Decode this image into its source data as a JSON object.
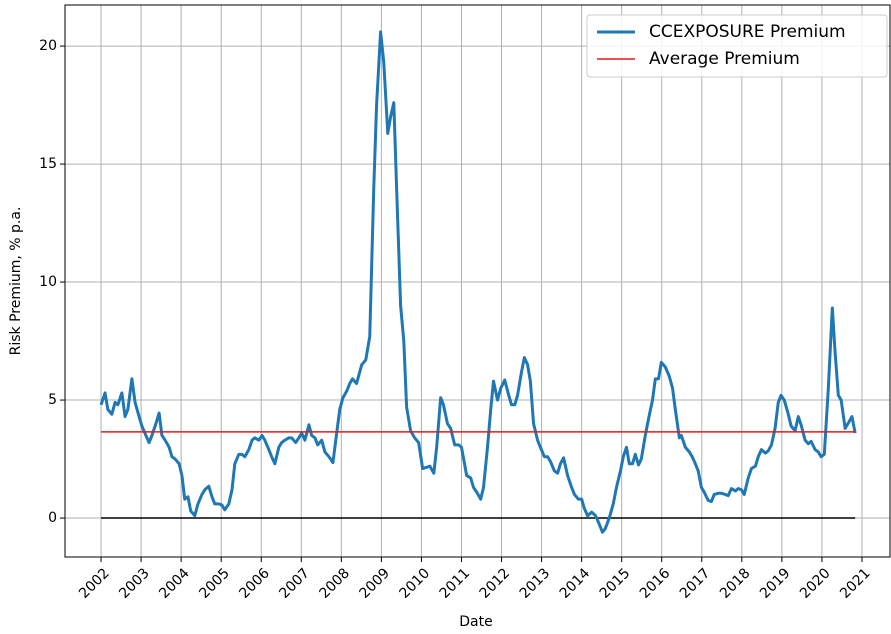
{
  "chart_data": {
    "type": "line",
    "xlabel": "Date",
    "ylabel": "Risk Premium, % p.a.",
    "xlim": [
      2001.1,
      2021.7
    ],
    "ylim": [
      -1.65,
      21.74
    ],
    "xticks": [
      2002,
      2003,
      2004,
      2005,
      2006,
      2007,
      2008,
      2009,
      2010,
      2011,
      2012,
      2013,
      2014,
      2015,
      2016,
      2017,
      2018,
      2019,
      2020,
      2021
    ],
    "yticks": [
      0,
      5,
      10,
      15,
      20
    ],
    "grid": true,
    "legend": "upper right",
    "baseline": 0,
    "baseline_color": "#000000",
    "series": [
      {
        "name": "CCEXPOSURE Premium",
        "color": "#1f77b4",
        "x": [
          2002.0,
          2002.1,
          2002.17,
          2002.27,
          2002.35,
          2002.42,
          2002.52,
          2002.6,
          2002.67,
          2002.77,
          2002.85,
          2002.95,
          2003.02,
          2003.12,
          2003.2,
          2003.27,
          2003.37,
          2003.45,
          2003.52,
          2003.6,
          2003.7,
          2003.77,
          2003.85,
          2003.95,
          2004.02,
          2004.09,
          2004.17,
          2004.24,
          2004.34,
          2004.42,
          2004.52,
          2004.59,
          2004.69,
          2004.77,
          2004.84,
          2004.94,
          2005.02,
          2005.09,
          2005.19,
          2005.27,
          2005.34,
          2005.44,
          2005.52,
          2005.59,
          2005.69,
          2005.77,
          2005.84,
          2005.94,
          2006.02,
          2006.09,
          2006.19,
          2006.26,
          2006.34,
          2006.44,
          2006.51,
          2006.59,
          2006.69,
          2006.76,
          2006.86,
          2006.94,
          2007.01,
          2007.09,
          2007.19,
          2007.26,
          2007.34,
          2007.41,
          2007.51,
          2007.59,
          2007.69,
          2007.79,
          2007.96,
          2008.04,
          2008.14,
          2008.21,
          2008.28,
          2008.38,
          2008.51,
          2008.61,
          2008.71,
          2008.81,
          2008.88,
          2008.98,
          2009.06,
          2009.16,
          2009.23,
          2009.31,
          2009.38,
          2009.48,
          2009.56,
          2009.63,
          2009.73,
          2009.83,
          2009.93,
          2010.03,
          2010.13,
          2010.21,
          2010.31,
          2010.38,
          2010.48,
          2010.55,
          2010.65,
          2010.73,
          2010.83,
          2010.93,
          2011.0,
          2011.13,
          2011.23,
          2011.3,
          2011.38,
          2011.48,
          2011.55,
          2011.65,
          2011.73,
          2011.8,
          2011.9,
          2011.98,
          2012.08,
          2012.18,
          2012.25,
          2012.33,
          2012.4,
          2012.5,
          2012.57,
          2012.65,
          2012.72,
          2012.8,
          2012.9,
          2012.97,
          2013.07,
          2013.15,
          2013.22,
          2013.32,
          2013.4,
          2013.47,
          2013.55,
          2013.65,
          2013.75,
          2013.82,
          2013.92,
          2014.0,
          2014.07,
          2014.15,
          2014.25,
          2014.35,
          2014.45,
          2014.52,
          2014.59,
          2014.69,
          2014.79,
          2014.87,
          2014.97,
          2015.04,
          2015.12,
          2015.19,
          2015.27,
          2015.34,
          2015.42,
          2015.49,
          2015.59,
          2015.67,
          2015.77,
          2015.84,
          2015.92,
          2015.99,
          2016.09,
          2016.19,
          2016.27,
          2016.34,
          2016.44,
          2016.49,
          2016.59,
          2016.69,
          2016.76,
          2016.84,
          2016.91,
          2016.99,
          2017.06,
          2017.16,
          2017.24,
          2017.31,
          2017.41,
          2017.49,
          2017.59,
          2017.66,
          2017.74,
          2017.84,
          2017.91,
          2017.99,
          2018.06,
          2018.16,
          2018.24,
          2018.34,
          2018.41,
          2018.49,
          2018.59,
          2018.66,
          2018.74,
          2018.83,
          2018.91,
          2018.98,
          2019.06,
          2019.16,
          2019.23,
          2019.33,
          2019.41,
          2019.48,
          2019.58,
          2019.66,
          2019.73,
          2019.83,
          2019.91,
          2019.98,
          2020.06,
          2020.16,
          2020.26,
          2020.33,
          2020.41,
          2020.48,
          2020.58,
          2020.65,
          2020.75,
          2020.83
        ],
        "values": [
          4.8,
          5.3,
          4.6,
          4.4,
          4.9,
          4.8,
          5.3,
          4.3,
          4.6,
          5.9,
          4.9,
          4.3,
          3.9,
          3.5,
          3.2,
          3.5,
          4.0,
          4.45,
          3.5,
          3.3,
          3.0,
          2.6,
          2.5,
          2.3,
          1.8,
          0.8,
          0.9,
          0.3,
          0.1,
          0.6,
          1.0,
          1.2,
          1.35,
          0.9,
          0.6,
          0.6,
          0.55,
          0.35,
          0.6,
          1.2,
          2.3,
          2.7,
          2.7,
          2.6,
          2.9,
          3.3,
          3.4,
          3.3,
          3.5,
          3.3,
          2.9,
          2.6,
          2.3,
          3.0,
          3.2,
          3.3,
          3.4,
          3.4,
          3.2,
          3.4,
          3.6,
          3.3,
          3.95,
          3.5,
          3.4,
          3.1,
          3.3,
          2.8,
          2.6,
          2.35,
          4.6,
          5.1,
          5.4,
          5.7,
          5.9,
          5.7,
          6.5,
          6.7,
          7.7,
          14,
          17.5,
          20.6,
          19.3,
          16.3,
          17,
          17.6,
          14,
          9,
          7.5,
          4.7,
          3.7,
          3.4,
          3.2,
          2.1,
          2.15,
          2.2,
          1.9,
          3.0,
          5.1,
          4.8,
          4.0,
          3.8,
          3.1,
          3.1,
          3.0,
          1.8,
          1.7,
          1.3,
          1.1,
          0.8,
          1.3,
          3.0,
          4.6,
          5.8,
          5.0,
          5.5,
          5.85,
          5.2,
          4.8,
          4.8,
          5.2,
          6.2,
          6.8,
          6.5,
          5.8,
          4.0,
          3.3,
          3.0,
          2.6,
          2.6,
          2.4,
          2.0,
          1.9,
          2.3,
          2.55,
          1.8,
          1.3,
          1.0,
          0.8,
          0.8,
          0.4,
          0.1,
          0.25,
          0.1,
          -0.3,
          -0.6,
          -0.45,
          0,
          0.6,
          1.3,
          2.0,
          2.6,
          3.0,
          2.3,
          2.3,
          2.7,
          2.25,
          2.5,
          3.5,
          4.2,
          5.0,
          5.9,
          5.9,
          6.6,
          6.4,
          6.0,
          5.5,
          4.6,
          3.4,
          3.5,
          3.0,
          2.8,
          2.6,
          2.3,
          2.0,
          1.3,
          1.1,
          0.75,
          0.7,
          1.0,
          1.05,
          1.05,
          1.0,
          0.95,
          1.25,
          1.15,
          1.25,
          1.2,
          1.0,
          1.7,
          2.1,
          2.2,
          2.6,
          2.9,
          2.75,
          2.85,
          3.1,
          3.8,
          4.9,
          5.2,
          5.0,
          4.4,
          3.9,
          3.7,
          4.3,
          3.95,
          3.3,
          3.15,
          3.25,
          2.9,
          2.8,
          2.6,
          2.7,
          5.5,
          8.9,
          7.0,
          5.2,
          5.0,
          3.8,
          4.0,
          4.3,
          3.6
        ]
      },
      {
        "name": "Average Premium",
        "color": "#e31a1c",
        "x": [
          2002.0,
          2020.83
        ],
        "values": [
          3.65,
          3.65
        ]
      }
    ]
  }
}
